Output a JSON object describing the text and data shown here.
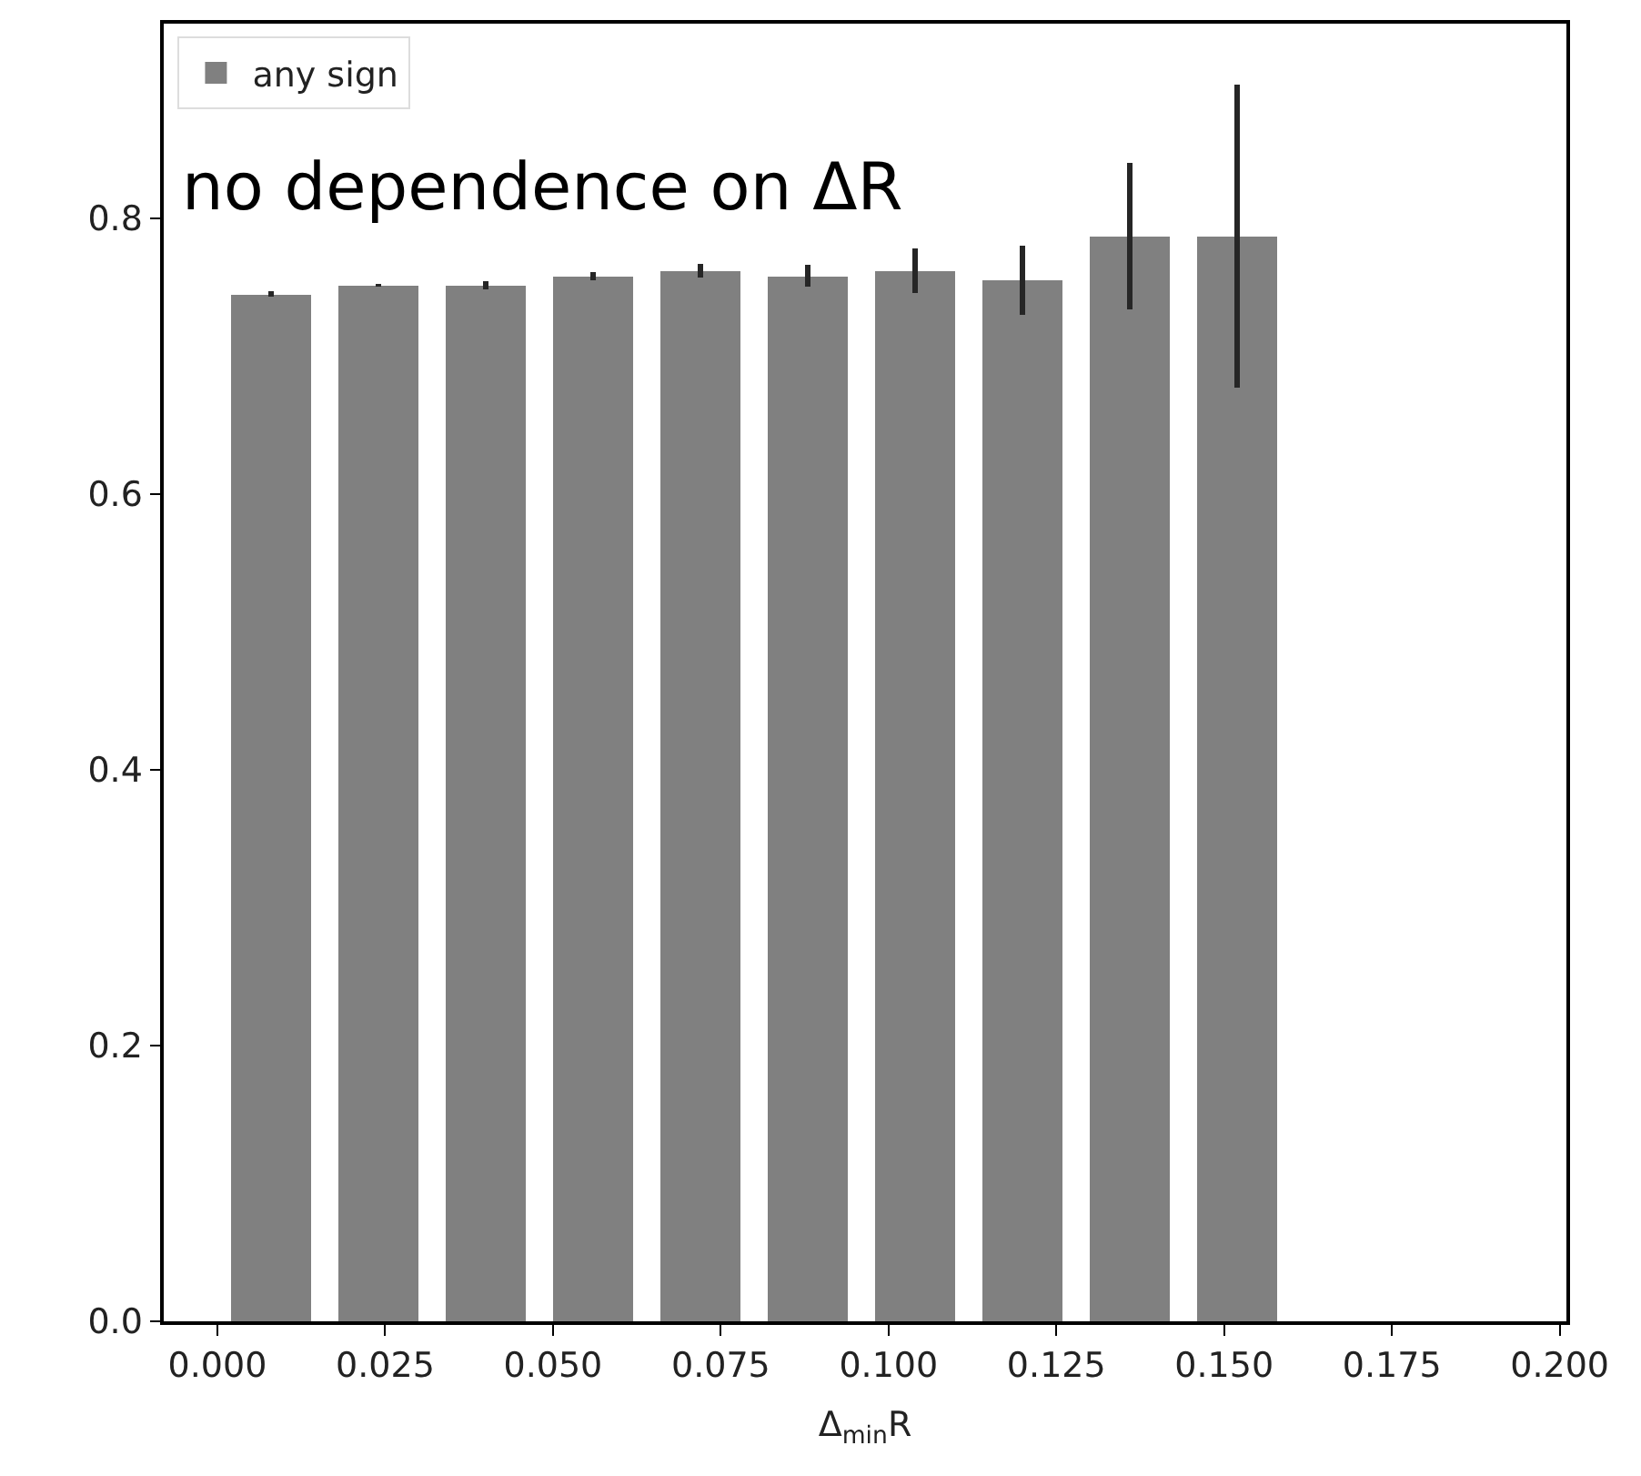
{
  "chart_data": {
    "type": "bar",
    "xlabel": "Δ$_{min}$R",
    "x": [
      0.008,
      0.024,
      0.04,
      0.056,
      0.072,
      0.088,
      0.104,
      0.12,
      0.136,
      0.152
    ],
    "series": [
      {
        "name": "any sign",
        "color": "#808080",
        "values": [
          0.745,
          0.751,
          0.751,
          0.758,
          0.762,
          0.758,
          0.762,
          0.755,
          0.787,
          0.787
        ],
        "errors": [
          0.002,
          0.001,
          0.003,
          0.003,
          0.005,
          0.008,
          0.016,
          0.025,
          0.053,
          0.11
        ]
      }
    ],
    "annotations": [
      "no dependence on ΔR"
    ],
    "xlim": [
      -0.008,
      0.201
    ],
    "ylim": [
      0,
      0.941
    ],
    "xticks": [
      {
        "value": 0,
        "label": "0.000"
      },
      {
        "value": 0.025,
        "label": "0.025"
      },
      {
        "value": 0.05,
        "label": "0.050"
      },
      {
        "value": 0.075,
        "label": "0.075"
      },
      {
        "value": 0.1,
        "label": "0.100"
      },
      {
        "value": 0.125,
        "label": "0.125"
      },
      {
        "value": 0.15,
        "label": "0.150"
      },
      {
        "value": 0.175,
        "label": "0.175"
      },
      {
        "value": 0.2,
        "label": "0.200"
      }
    ],
    "yticks": [
      {
        "value": 0,
        "label": "0.0"
      },
      {
        "value": 0.2,
        "label": "0.2"
      },
      {
        "value": 0.4,
        "label": "0.4"
      },
      {
        "value": 0.6,
        "label": "0.6"
      },
      {
        "value": 0.8,
        "label": "0.8"
      }
    ],
    "legend": "top left"
  }
}
